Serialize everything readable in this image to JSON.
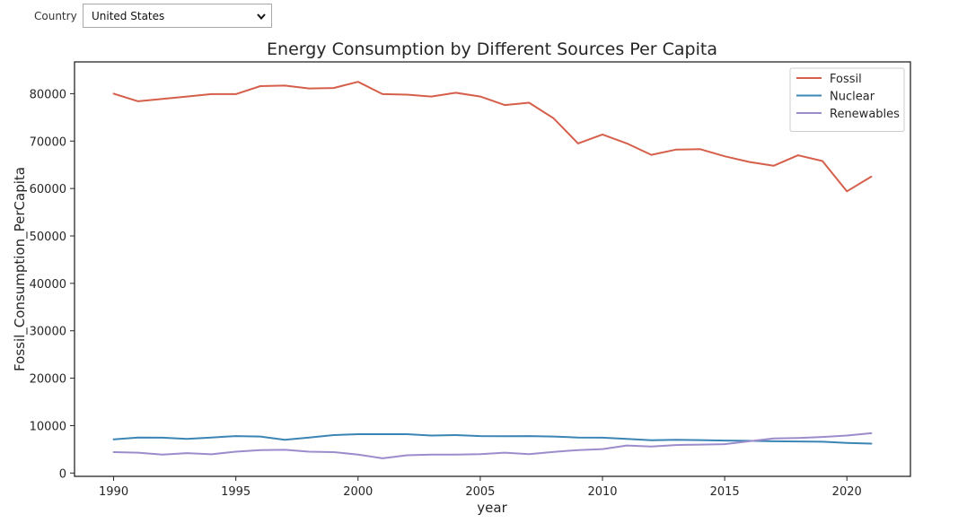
{
  "controls": {
    "country_label": "Country",
    "country_selected": "United States"
  },
  "chart_data": {
    "type": "line",
    "title": "Energy Consumption by Different Sources Per Capita",
    "xlabel": "year",
    "ylabel": "Fossil_Consumption_PerCapita",
    "xlim": [
      1988.4,
      2022.6
    ],
    "ylim": [
      -700,
      86700
    ],
    "xticks": [
      1990,
      1995,
      2000,
      2005,
      2010,
      2015,
      2020
    ],
    "yticks": [
      0,
      10000,
      20000,
      30000,
      40000,
      50000,
      60000,
      70000,
      80000
    ],
    "grid": false,
    "legend": "top-right",
    "x": [
      1990,
      1991,
      1992,
      1993,
      1994,
      1995,
      1996,
      1997,
      1998,
      1999,
      2000,
      2001,
      2002,
      2003,
      2004,
      2005,
      2006,
      2007,
      2008,
      2009,
      2010,
      2011,
      2012,
      2013,
      2014,
      2015,
      2016,
      2017,
      2018,
      2019,
      2020,
      2021
    ],
    "series": [
      {
        "name": "Fossil",
        "color": "#d65f4b",
        "values": [
          80000,
          78400,
          78900,
          79400,
          79900,
          79900,
          81600,
          81700,
          81100,
          81200,
          82500,
          79900,
          79800,
          79400,
          80200,
          79400,
          77600,
          78100,
          74800,
          69500,
          71400,
          69500,
          67100,
          68200,
          68300,
          66800,
          65600,
          64800,
          67000,
          65800,
          59400,
          62500
        ]
      },
      {
        "name": "Nuclear",
        "color": "#3b85b5",
        "values": [
          7100,
          7500,
          7450,
          7200,
          7500,
          7800,
          7700,
          7000,
          7500,
          8000,
          8200,
          8200,
          8200,
          7900,
          8000,
          7800,
          7750,
          7800,
          7700,
          7500,
          7450,
          7200,
          6900,
          7000,
          6950,
          6850,
          6800,
          6700,
          6650,
          6600,
          6350,
          6200
        ]
      },
      {
        "name": "Renewables",
        "color": "#9c8ccc",
        "values": [
          4400,
          4300,
          3900,
          4200,
          3950,
          4500,
          4850,
          4900,
          4500,
          4400,
          3900,
          3100,
          3750,
          3900,
          3900,
          4000,
          4300,
          4000,
          4450,
          4850,
          5050,
          5800,
          5600,
          5900,
          6000,
          6100,
          6700,
          7300,
          7400,
          7600,
          7900,
          8400
        ]
      }
    ]
  }
}
